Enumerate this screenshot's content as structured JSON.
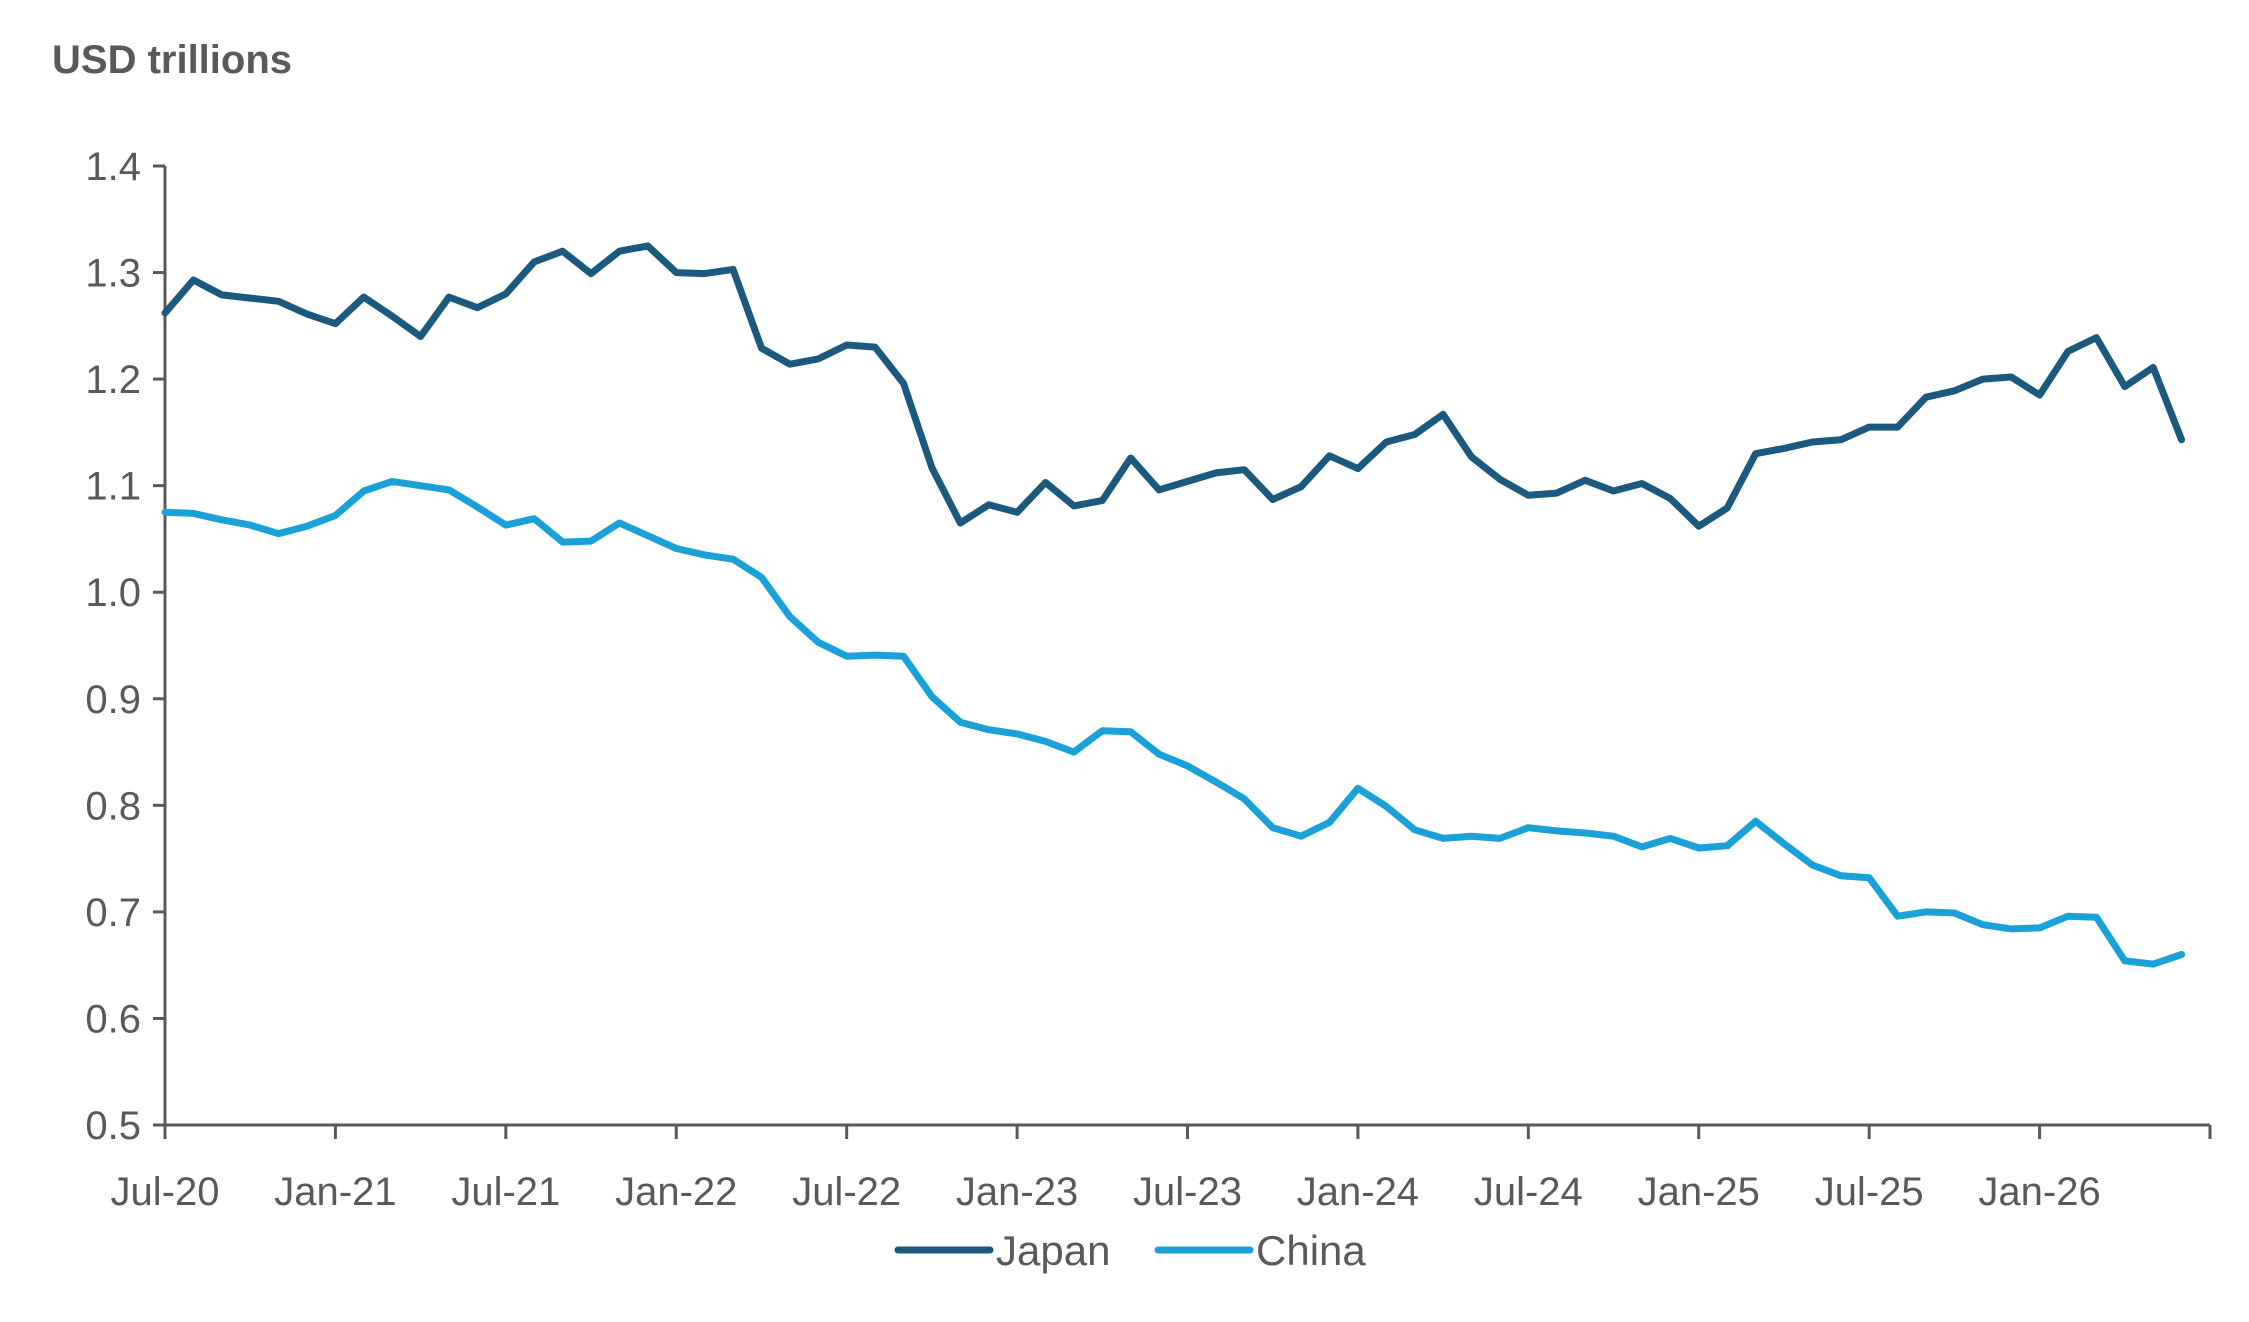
{
  "chart_data": {
    "type": "line",
    "title": "",
    "ylabel": "USD trillions",
    "xlabel": "",
    "ylim": [
      0.5,
      1.4
    ],
    "yticks": [
      0.5,
      0.6,
      0.7,
      0.8,
      0.9,
      1.0,
      1.1,
      1.2,
      1.3,
      1.4
    ],
    "x_start": "2020-07",
    "x_end": "2026-07",
    "xtick_labels": [
      "Jul-20",
      "Jan-21",
      "Jul-21",
      "Jan-22",
      "Jul-22",
      "Jan-23",
      "Jul-23",
      "Jan-24",
      "Jul-24",
      "Jan-25",
      "Jul-25",
      "Jan-26"
    ],
    "grid": false,
    "legend_position": "bottom",
    "series": [
      {
        "name": "Japan",
        "color": "#1b5a7e",
        "x": [
          "2020-07",
          "2020-08",
          "2020-09",
          "2020-10",
          "2020-11",
          "2020-12",
          "2021-01",
          "2021-02",
          "2021-03",
          "2021-04",
          "2021-05",
          "2021-06",
          "2021-07",
          "2021-08",
          "2021-09",
          "2021-10",
          "2021-11",
          "2021-12",
          "2022-01",
          "2022-02",
          "2022-03",
          "2022-04",
          "2022-05",
          "2022-06",
          "2022-07",
          "2022-08",
          "2022-09",
          "2022-10",
          "2022-11",
          "2022-12",
          "2023-01",
          "2023-02",
          "2023-03",
          "2023-04",
          "2023-05",
          "2023-06",
          "2023-07",
          "2023-08",
          "2023-09",
          "2023-10",
          "2023-11",
          "2023-12",
          "2024-01",
          "2024-02",
          "2024-03",
          "2024-04",
          "2024-05",
          "2024-06",
          "2024-07",
          "2024-08",
          "2024-09",
          "2024-10",
          "2024-11",
          "2024-12",
          "2025-01",
          "2025-02",
          "2025-03",
          "2025-04",
          "2025-05",
          "2025-06",
          "2025-07",
          "2025-08",
          "2025-09",
          "2025-10",
          "2025-11",
          "2025-12",
          "2026-01",
          "2026-02",
          "2026-03",
          "2026-04",
          "2026-05",
          "2026-06"
        ],
        "values": [
          1.262,
          1.293,
          1.279,
          1.276,
          1.273,
          1.261,
          1.252,
          1.277,
          1.259,
          1.24,
          1.277,
          1.267,
          1.28,
          1.31,
          1.32,
          1.299,
          1.32,
          1.325,
          1.3,
          1.299,
          1.303,
          1.229,
          1.214,
          1.219,
          1.232,
          1.23,
          1.196,
          1.117,
          1.065,
          1.082,
          1.075,
          1.103,
          1.081,
          1.086,
          1.126,
          1.096,
          1.104,
          1.112,
          1.115,
          1.087,
          1.099,
          1.128,
          1.116,
          1.141,
          1.148,
          1.167,
          1.127,
          1.106,
          1.091,
          1.093,
          1.105,
          1.095,
          1.102,
          1.088,
          1.062,
          1.079,
          1.13,
          1.135,
          1.141,
          1.143,
          1.155,
          1.155,
          1.183,
          1.189,
          1.2,
          1.202,
          1.185,
          1.226,
          1.239,
          1.193,
          1.211,
          1.143
        ]
      },
      {
        "name": "China",
        "color": "#1aa1d8",
        "x": [
          "2020-07",
          "2020-08",
          "2020-09",
          "2020-10",
          "2020-11",
          "2020-12",
          "2021-01",
          "2021-02",
          "2021-03",
          "2021-04",
          "2021-05",
          "2021-06",
          "2021-07",
          "2021-08",
          "2021-09",
          "2021-10",
          "2021-11",
          "2021-12",
          "2022-01",
          "2022-02",
          "2022-03",
          "2022-04",
          "2022-05",
          "2022-06",
          "2022-07",
          "2022-08",
          "2022-09",
          "2022-10",
          "2022-11",
          "2022-12",
          "2023-01",
          "2023-02",
          "2023-03",
          "2023-04",
          "2023-05",
          "2023-06",
          "2023-07",
          "2023-08",
          "2023-09",
          "2023-10",
          "2023-11",
          "2023-12",
          "2024-01",
          "2024-02",
          "2024-03",
          "2024-04",
          "2024-05",
          "2024-06",
          "2024-07",
          "2024-08",
          "2024-09",
          "2024-10",
          "2024-11",
          "2024-12",
          "2025-01",
          "2025-02",
          "2025-03",
          "2025-04",
          "2025-05",
          "2025-06",
          "2025-07",
          "2025-08",
          "2025-09",
          "2025-10",
          "2025-11",
          "2025-12",
          "2026-01",
          "2026-02",
          "2026-03",
          "2026-04",
          "2026-05",
          "2026-06"
        ],
        "values": [
          1.075,
          1.074,
          1.068,
          1.063,
          1.055,
          1.062,
          1.072,
          1.095,
          1.104,
          1.1,
          1.096,
          1.08,
          1.063,
          1.069,
          1.047,
          1.048,
          1.065,
          1.053,
          1.041,
          1.035,
          1.031,
          1.014,
          0.977,
          0.953,
          0.94,
          0.941,
          0.94,
          0.902,
          0.878,
          0.871,
          0.867,
          0.86,
          0.85,
          0.87,
          0.869,
          0.848,
          0.837,
          0.822,
          0.806,
          0.779,
          0.771,
          0.784,
          0.816,
          0.799,
          0.777,
          0.769,
          0.771,
          0.769,
          0.779,
          0.776,
          0.774,
          0.771,
          0.761,
          0.769,
          0.76,
          0.762,
          0.785,
          0.764,
          0.744,
          0.734,
          0.732,
          0.696,
          0.7,
          0.699,
          0.688,
          0.684,
          0.685,
          0.696,
          0.695,
          0.654,
          0.651,
          0.66
        ]
      }
    ]
  }
}
